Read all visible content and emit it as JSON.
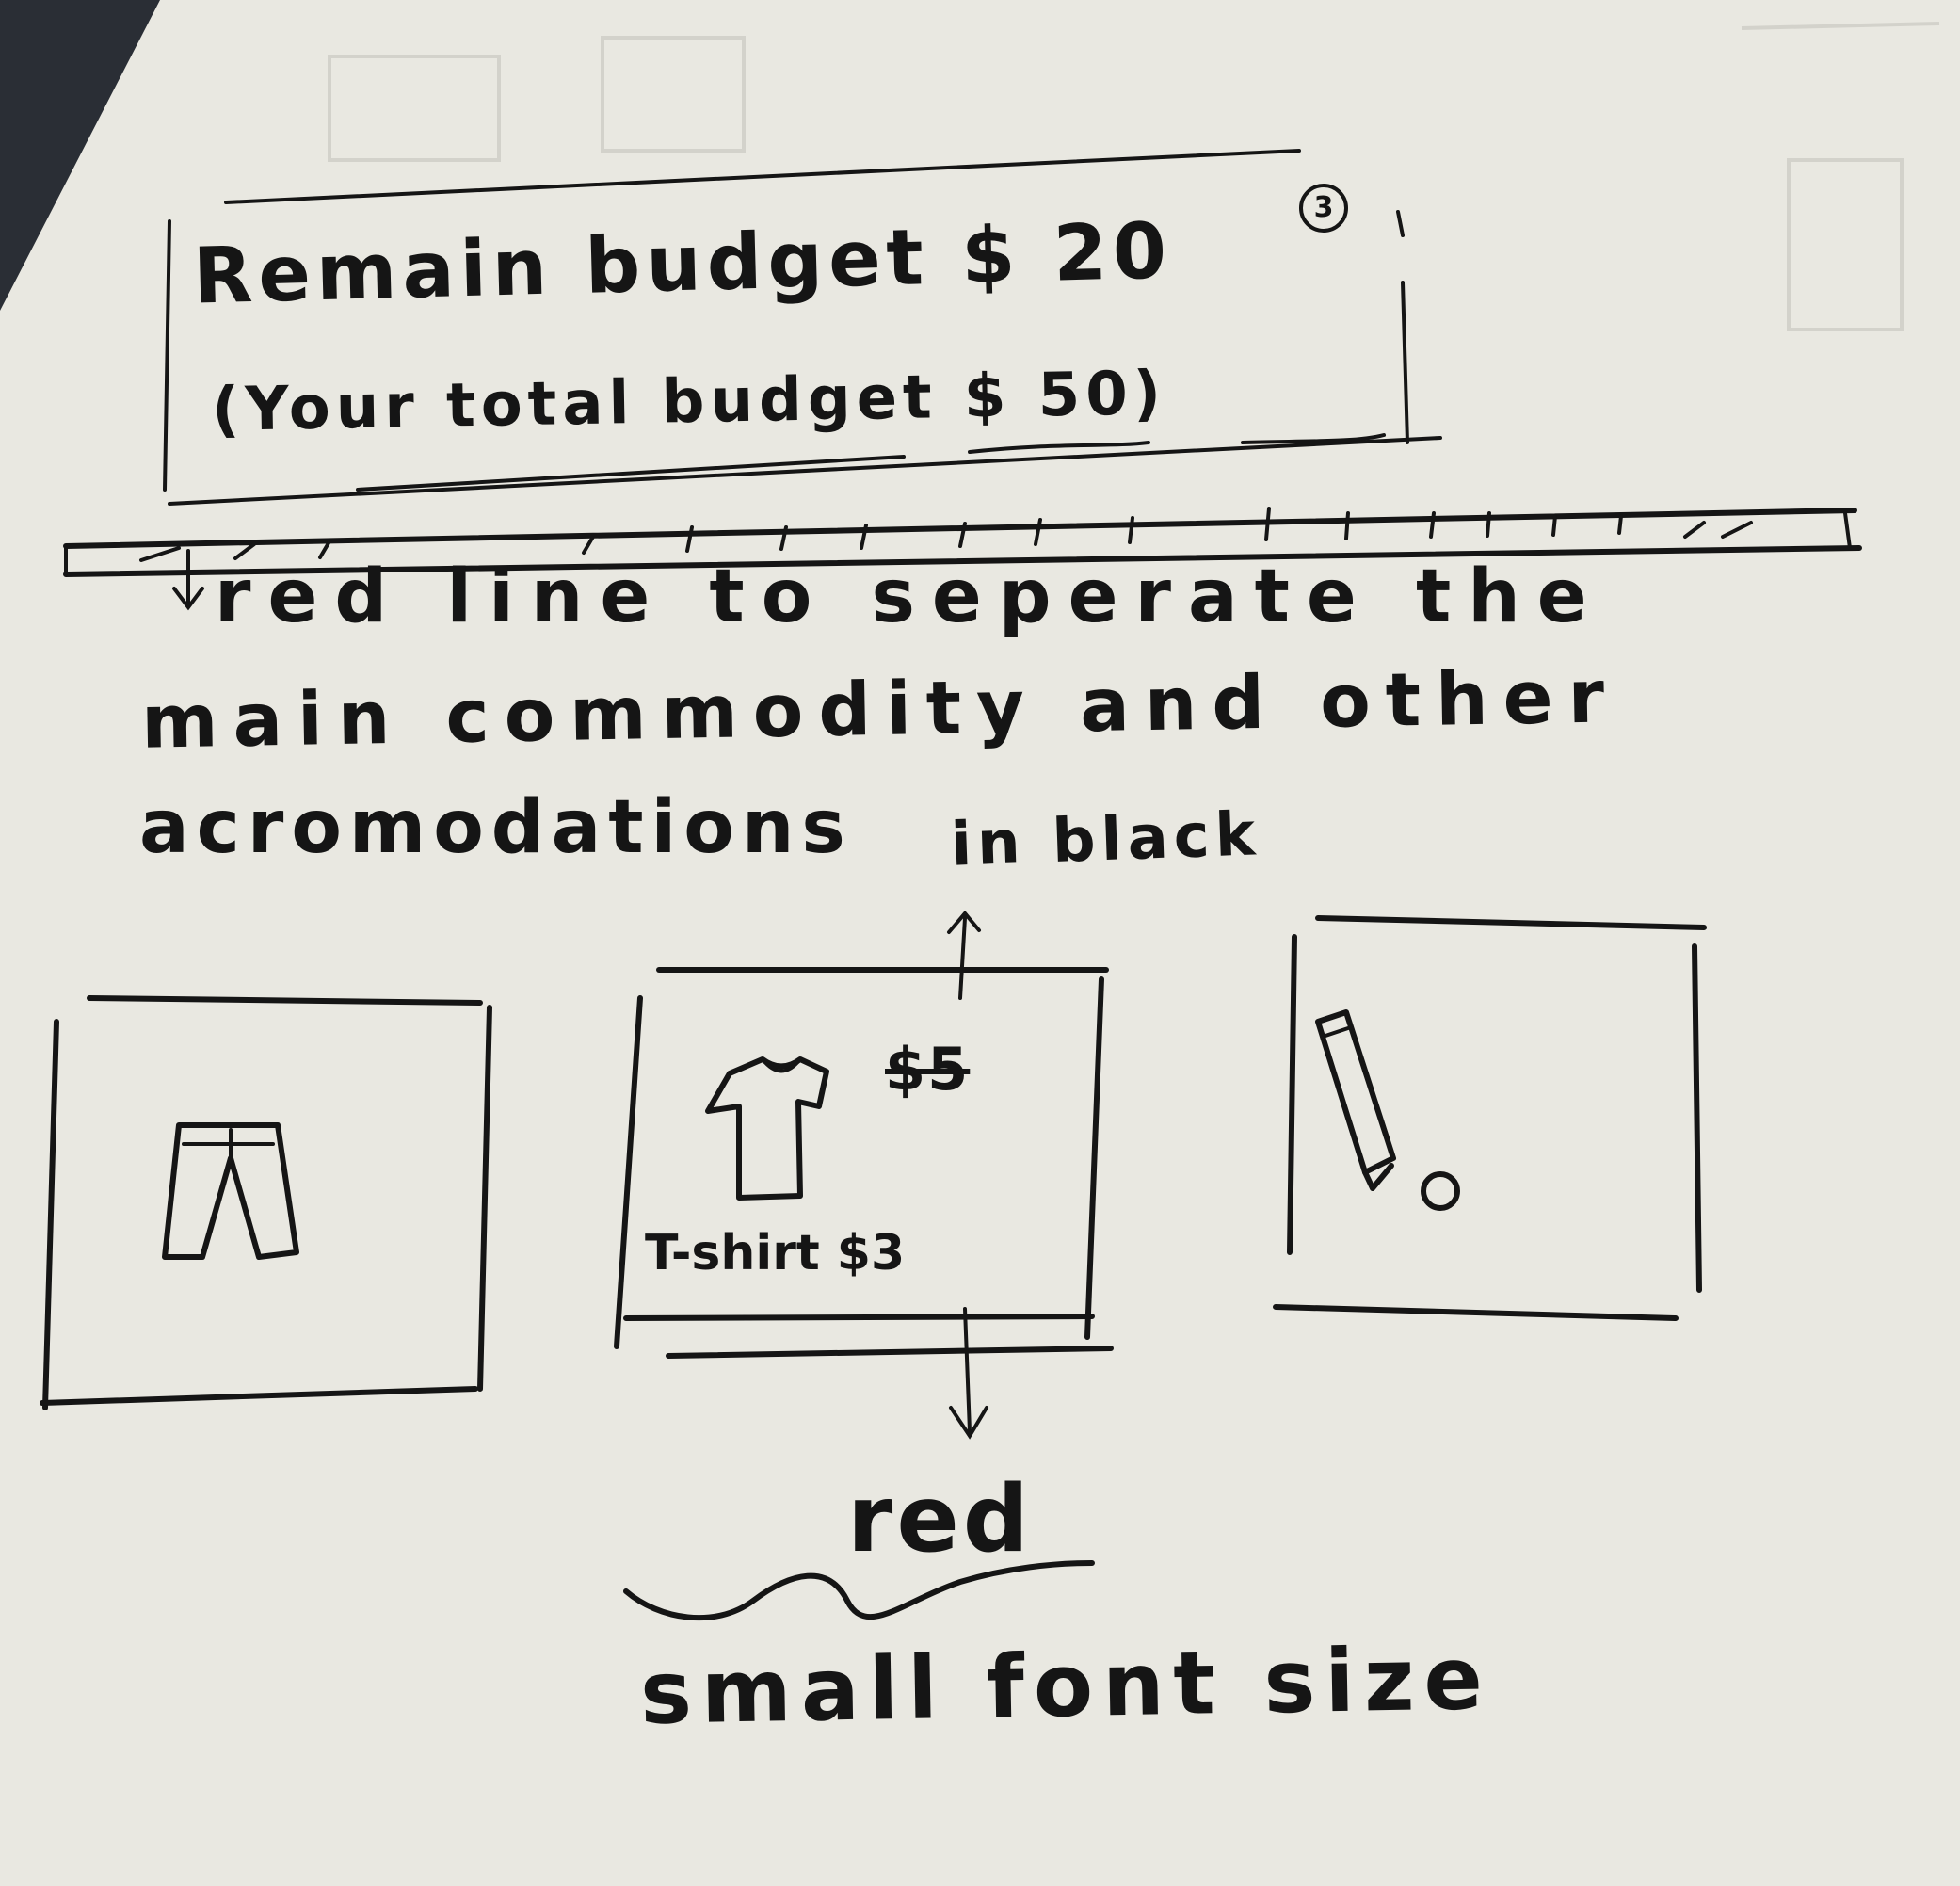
{
  "header": {
    "remaining_budget": "Remain budget $ 20",
    "total_budget": "(Your total budget $ 50)",
    "step_marker": "3"
  },
  "divider_note": {
    "line1": "red line to seperate the",
    "line2": "main commodity and other",
    "line3": "acromodations"
  },
  "annotations": {
    "price_color_note": "in black",
    "label_color_note": "red",
    "label_size_note": "small font size"
  },
  "products": [
    {
      "icon": "pants-icon"
    },
    {
      "icon": "tshirt-icon",
      "original_price": "$5",
      "label": "T-shirt $3"
    },
    {
      "icon": "pencil-eraser-icon"
    }
  ]
}
